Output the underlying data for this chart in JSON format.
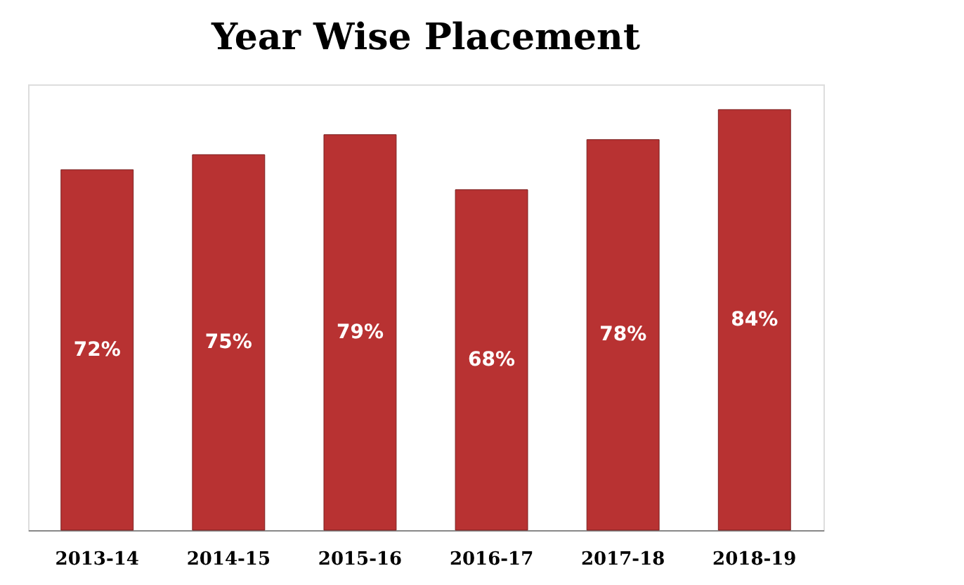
{
  "chart_data": {
    "type": "bar",
    "title": "Year Wise Placement",
    "categories": [
      "2013-14",
      "2014-15",
      "2015-16",
      "2016-17",
      "2017-18",
      "2018-19"
    ],
    "values": [
      72,
      75,
      79,
      68,
      78,
      84
    ],
    "value_labels": [
      "72%",
      "75%",
      "79%",
      "68%",
      "78%",
      "84%"
    ],
    "color": "#b83232",
    "grid": false
  }
}
